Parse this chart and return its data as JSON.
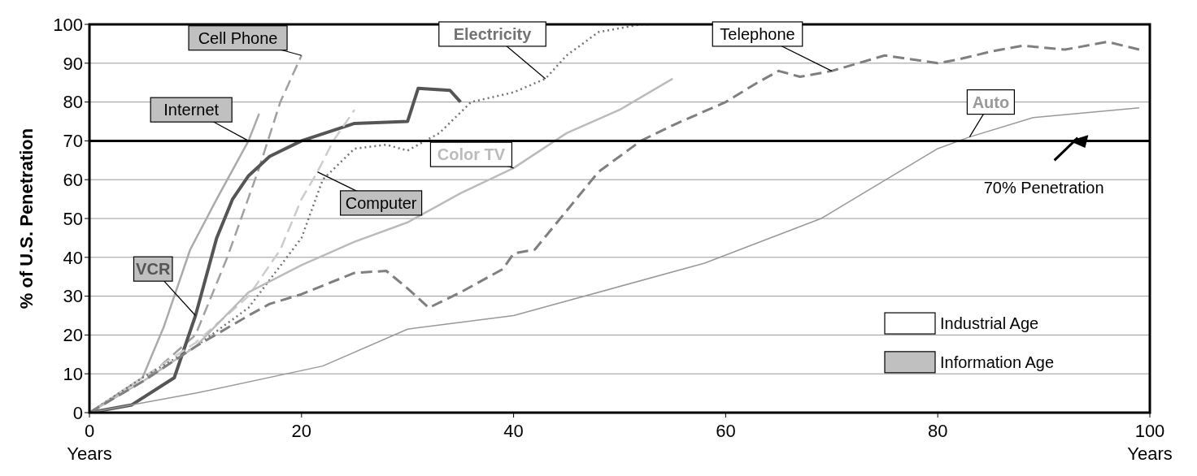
{
  "chart_data": {
    "type": "line",
    "xlabel": "Years",
    "ylabel": "% of U.S. Penetration",
    "xlim": [
      0,
      100
    ],
    "xticks": [
      0,
      20,
      40,
      60,
      80,
      100
    ],
    "ylim": [
      0,
      100
    ],
    "yticks": [
      0,
      10,
      20,
      30,
      40,
      50,
      60,
      70,
      80,
      90,
      100
    ],
    "grid": "y",
    "marker": "none",
    "ref_lines": [
      {
        "axis": "y",
        "value": 70,
        "label": "70% Penetration",
        "color": "#000000"
      }
    ],
    "annotations": [
      "Industrial Age",
      "Information Age"
    ],
    "series": [
      {
        "name": "Cell Phone",
        "color": "#a0a0a0",
        "line_style": "dashed",
        "x": [
          0,
          5,
          10,
          13,
          16,
          18,
          20
        ],
        "values": [
          0,
          8,
          20,
          40,
          63,
          80,
          92
        ]
      },
      {
        "name": "Internet",
        "color": "#aaaaaa",
        "line_style": "solid",
        "x": [
          0,
          5,
          7,
          9.5,
          12,
          15,
          16
        ],
        "values": [
          0,
          9,
          22,
          42,
          55,
          70,
          77
        ]
      },
      {
        "name": "VCR",
        "color": "#555555",
        "line_style": "solid",
        "x": [
          0,
          4,
          8,
          10,
          12,
          13.5,
          15,
          17,
          20,
          25,
          30,
          31,
          34,
          35
        ],
        "values": [
          0,
          2,
          9,
          25,
          45,
          55,
          61,
          66,
          70,
          74.5,
          75,
          83.5,
          83,
          80
        ]
      },
      {
        "name": "Computer",
        "color": "#cccccc",
        "line_style": "dashed",
        "x": [
          0,
          5,
          10,
          15,
          18,
          20,
          21.5,
          23,
          25
        ],
        "values": [
          0,
          9,
          18,
          30,
          42,
          55,
          62,
          70,
          78
        ]
      },
      {
        "name": "Electricity",
        "color": "#737373",
        "line_style": "dotted",
        "x": [
          0,
          5,
          10,
          15,
          20,
          22,
          25,
          28,
          30,
          33,
          36,
          40,
          43,
          45,
          48,
          52,
          53
        ],
        "values": [
          0,
          9,
          17,
          27,
          45,
          60,
          68,
          69,
          67.5,
          72,
          80,
          82.5,
          86,
          92,
          98,
          100,
          100
        ]
      },
      {
        "name": "Color TV",
        "color": "#bbbbbb",
        "line_style": "solid",
        "x": [
          0,
          5,
          10,
          15,
          20,
          25,
          30,
          35,
          40,
          45,
          50,
          55
        ],
        "values": [
          0,
          8,
          17,
          31,
          38,
          44,
          49,
          56.5,
          63,
          72,
          78,
          86
        ]
      },
      {
        "name": "Telephone",
        "color": "#7f7f7f",
        "line_style": "dashed",
        "x": [
          0,
          5,
          10,
          15,
          17,
          20,
          25,
          28,
          30,
          32,
          35,
          39,
          40,
          42,
          45,
          48,
          52,
          55,
          60,
          63,
          65,
          67,
          70,
          75,
          80,
          82,
          85,
          88,
          92,
          96,
          99
        ],
        "values": [
          0,
          8,
          17,
          25,
          28,
          30.5,
          36,
          36.5,
          32,
          27,
          31,
          37,
          41,
          42,
          52,
          62,
          70,
          74,
          80,
          85,
          88,
          86.5,
          88,
          92,
          90,
          91,
          93,
          94.5,
          93.5,
          95.5,
          93.5
        ]
      },
      {
        "name": "Auto",
        "color": "#999999",
        "line_style": "solid",
        "x": [
          0,
          10,
          22,
          30,
          40,
          58,
          69,
          80,
          83,
          89,
          99
        ],
        "values": [
          0,
          5,
          12,
          21.5,
          25,
          38.5,
          50,
          68,
          71,
          76,
          78.5
        ]
      }
    ]
  }
}
